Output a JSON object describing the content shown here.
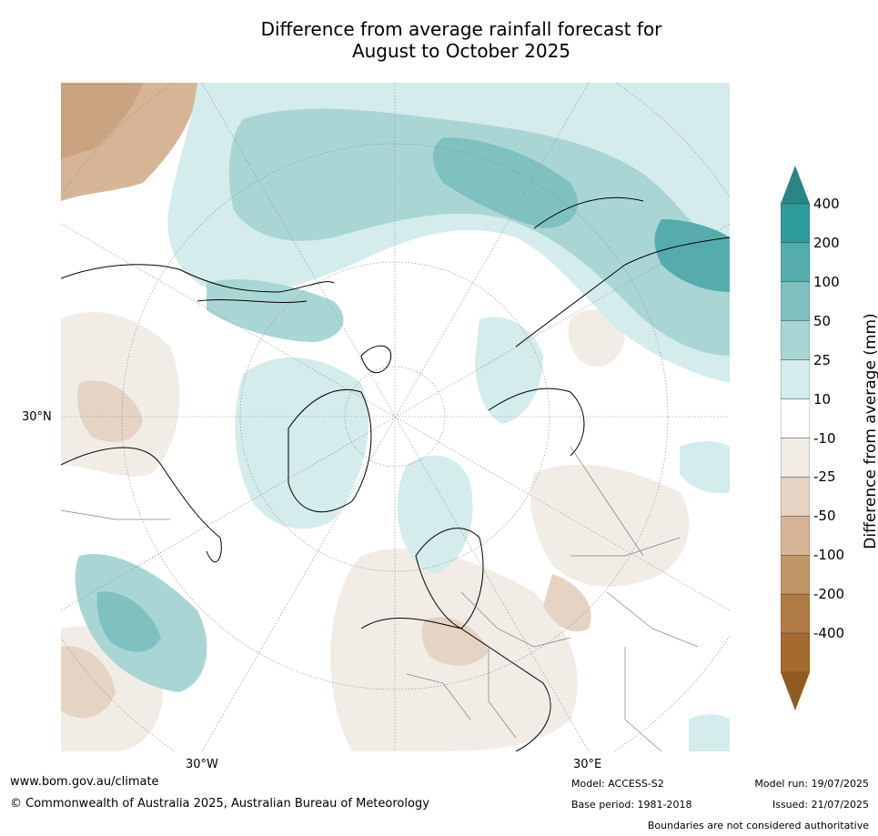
{
  "title_line1": "Difference from average rainfall forecast for",
  "title_line2": "August to October 2025",
  "map": {
    "labels": {
      "lat_30n": "30°N",
      "lon_30w": "30°W",
      "lon_30e": "30°E"
    },
    "colors": {
      "ocean": "#ffffff",
      "wet_1": "#d4eceb",
      "wet_2": "#a9d6d5",
      "wet_3": "#7fc1c0",
      "wet_4": "#56acac",
      "dry_1": "#f2ece6",
      "dry_2": "#e5d3c4",
      "dry_3": "#d6b597",
      "coast": "#000000",
      "border": "#808080"
    }
  },
  "colorbar": {
    "label": "Difference from average (mm)",
    "ticks": [
      "400",
      "200",
      "100",
      "50",
      "25",
      "10",
      "-10",
      "-25",
      "-50",
      "-100",
      "-200",
      "-400"
    ],
    "colors": [
      "#2a8585",
      "#2f9c9c",
      "#56acac",
      "#7fc1c0",
      "#a9d6d5",
      "#d4eceb",
      "#ffffff",
      "#f2ece6",
      "#e5d3c4",
      "#d6b597",
      "#c19566",
      "#b07a44",
      "#a56a30",
      "#8f5a23"
    ]
  },
  "footer": {
    "website": "www.bom.gov.au/climate",
    "copyright": "© Commonwealth of Australia 2025, Australian Bureau of Meteorology",
    "model": "Model: ACCESS-S2",
    "base_period": "Base period: 1981-2018",
    "model_run": "Model run: 19/07/2025",
    "issued": "Issued: 21/07/2025",
    "disclaimer": "Boundaries are not considered authoritative"
  }
}
